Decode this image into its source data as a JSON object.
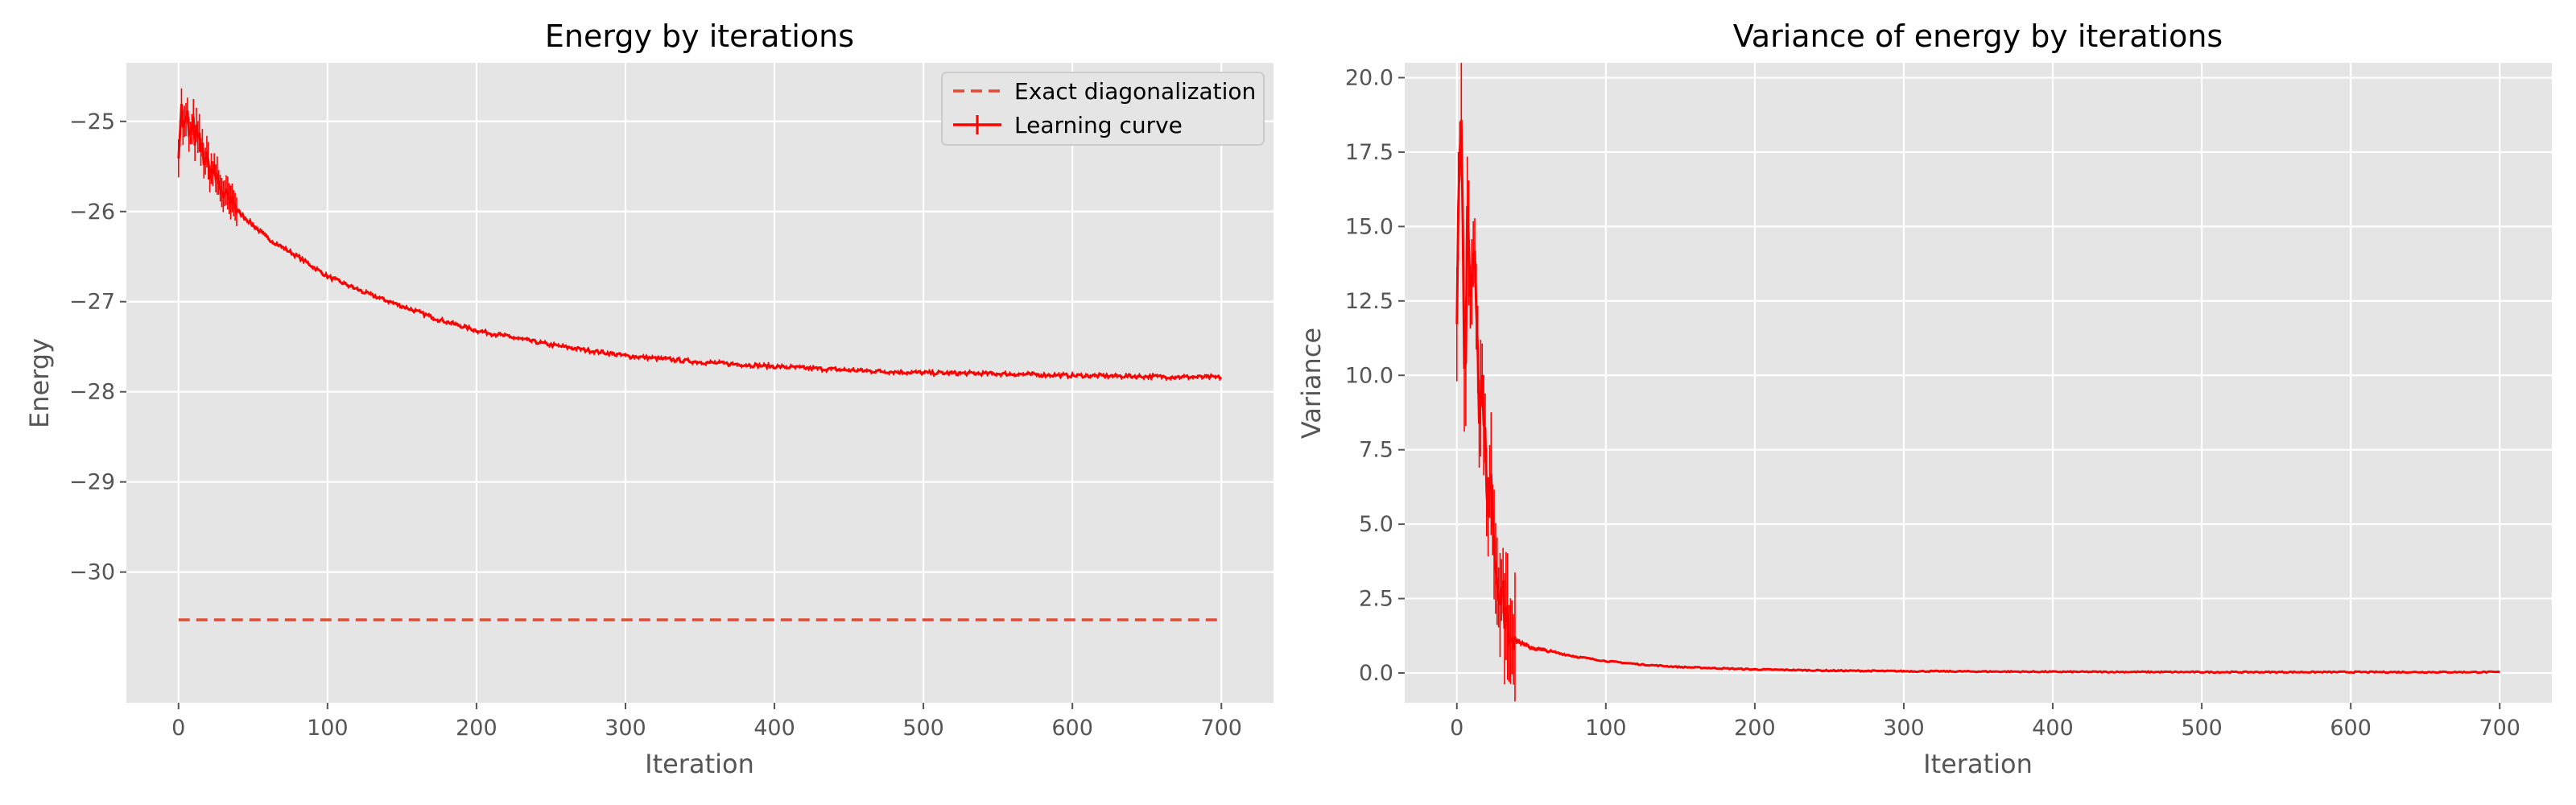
{
  "chart_data": [
    {
      "type": "line",
      "title": "Energy by iterations",
      "xlabel": "Iteration",
      "ylabel": "Energy",
      "xlim": [
        -35,
        735
      ],
      "ylim": [
        -31.45,
        -24.35
      ],
      "xticks": [
        0,
        100,
        200,
        300,
        400,
        500,
        600,
        700
      ],
      "xtick_labels": [
        "0",
        "100",
        "200",
        "300",
        "400",
        "500",
        "600",
        "700"
      ],
      "yticks": [
        -25,
        -26,
        -27,
        -28,
        -29,
        -30
      ],
      "ytick_labels": [
        "−25",
        "−26",
        "−27",
        "−28",
        "−29",
        "−30"
      ],
      "grid": true,
      "legend": {
        "position": "top-right",
        "entries": [
          "Exact diagonalization",
          "Learning curve"
        ]
      },
      "series": [
        {
          "name": "Exact diagonalization",
          "style": "dashed",
          "color": "#e24a33",
          "x": [
            0,
            700
          ],
          "y": [
            -30.53,
            -30.53
          ]
        },
        {
          "name": "Learning curve",
          "style": "solid-with-errorbars",
          "color": "#ff0000",
          "x": [
            0,
            2,
            4,
            6,
            8,
            10,
            15,
            20,
            25,
            30,
            40,
            50,
            60,
            80,
            100,
            125,
            150,
            175,
            200,
            250,
            300,
            350,
            400,
            450,
            500,
            550,
            600,
            650,
            700
          ],
          "y": [
            -25.2,
            -24.9,
            -25.1,
            -25.0,
            -25.2,
            -25.1,
            -25.3,
            -25.5,
            -25.6,
            -25.8,
            -26.0,
            -26.15,
            -26.3,
            -26.5,
            -26.72,
            -26.9,
            -27.05,
            -27.2,
            -27.32,
            -27.48,
            -27.6,
            -27.67,
            -27.72,
            -27.76,
            -27.79,
            -27.8,
            -27.82,
            -27.83,
            -27.84
          ]
        }
      ]
    },
    {
      "type": "line",
      "title": "Variance of energy by iterations",
      "xlabel": "Iteration",
      "ylabel": "Variance",
      "xlim": [
        -35,
        735
      ],
      "ylim": [
        -1.0,
        20.5
      ],
      "xticks": [
        0,
        100,
        200,
        300,
        400,
        500,
        600,
        700
      ],
      "xtick_labels": [
        "0",
        "100",
        "200",
        "300",
        "400",
        "500",
        "600",
        "700"
      ],
      "yticks": [
        0.0,
        2.5,
        5.0,
        7.5,
        10.0,
        12.5,
        15.0,
        17.5,
        20.0
      ],
      "ytick_labels": [
        "0.0",
        "2.5",
        "5.0",
        "7.5",
        "10.0",
        "12.5",
        "15.0",
        "17.5",
        "20.0"
      ],
      "grid": true,
      "series": [
        {
          "style": "solid-with-errorbars",
          "color": "#ff0000",
          "x": [
            0,
            2,
            3,
            5,
            7,
            9,
            12,
            15,
            18,
            21,
            24,
            27,
            30,
            35,
            40,
            45,
            50,
            60,
            70,
            80,
            100,
            125,
            150,
            200,
            250,
            300,
            400,
            500,
            600,
            700
          ],
          "y": [
            12,
            17,
            19.5,
            10,
            15,
            11,
            14.5,
            10,
            8.5,
            6.5,
            5,
            3.5,
            2.5,
            1.6,
            1.1,
            0.95,
            0.85,
            0.75,
            0.65,
            0.55,
            0.4,
            0.28,
            0.2,
            0.12,
            0.08,
            0.06,
            0.04,
            0.03,
            0.03,
            0.03
          ]
        }
      ]
    }
  ]
}
